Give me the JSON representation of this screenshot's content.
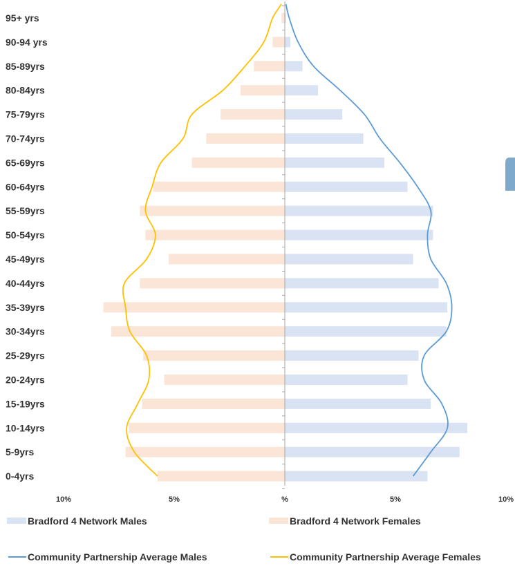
{
  "chart_data": {
    "type": "bar",
    "orientation": "horizontal-population-pyramid",
    "categories": [
      "95+  yrs",
      "90-94 yrs",
      "85-89yrs",
      "80-84yrs",
      "75-79yrs",
      "70-74yrs",
      "65-69yrs",
      "60-64yrs",
      "55-59yrs",
      "50-54yrs",
      "45-49yrs",
      "40-44yrs",
      "35-39yrs",
      "30-34yrs",
      "25-29yrs",
      "20-24yrs",
      "15-19yrs",
      "10-14yrs",
      "5-9yrs",
      "0-4yrs"
    ],
    "series": [
      {
        "name": "Bradford 4 Network Males",
        "kind": "bar",
        "side": "right",
        "color": "#dae3f3",
        "values": [
          0.05,
          0.25,
          0.8,
          1.5,
          2.6,
          3.55,
          4.5,
          5.55,
          6.7,
          6.7,
          5.8,
          6.95,
          7.35,
          7.3,
          6.05,
          5.55,
          6.6,
          8.25,
          7.9,
          6.45
        ]
      },
      {
        "name": "Bradford 4 Network Females",
        "kind": "bar",
        "side": "left",
        "color": "#fbe5d6",
        "values": [
          0.15,
          0.55,
          1.4,
          2.0,
          2.9,
          3.55,
          4.2,
          5.95,
          6.55,
          6.3,
          5.25,
          6.55,
          8.2,
          7.85,
          6.4,
          5.45,
          6.45,
          7.05,
          7.2,
          5.75
        ]
      },
      {
        "name": "Community Partnership Average Males",
        "kind": "line",
        "side": "right",
        "color": "#5b9bd5",
        "values": [
          0.2,
          0.6,
          1.3,
          2.5,
          3.6,
          4.3,
          5.2,
          6.0,
          6.6,
          6.45,
          6.6,
          7.3,
          7.55,
          7.3,
          6.3,
          6.3,
          7.1,
          7.35,
          6.6,
          5.8
        ]
      },
      {
        "name": "Community Partnership Average Females",
        "kind": "line",
        "side": "left",
        "color": "#ffc000",
        "values": [
          0.55,
          0.95,
          1.8,
          2.8,
          4.2,
          4.6,
          5.6,
          6.0,
          6.3,
          5.85,
          6.25,
          7.25,
          7.2,
          7.0,
          6.25,
          6.15,
          6.65,
          7.15,
          6.8,
          5.75
        ]
      }
    ],
    "x_ticks": [
      "10%",
      "5%",
      "%",
      "5%",
      "10%"
    ],
    "xlim": [
      -10,
      10
    ],
    "x_unit": "%",
    "grid": false,
    "legend": [
      {
        "label": "Bradford 4 Network Males",
        "kind": "bar",
        "color": "#dae3f3"
      },
      {
        "label": "Bradford 4 Network Females",
        "kind": "bar",
        "color": "#fbe5d6"
      },
      {
        "label": "Community Partnership Average Males",
        "kind": "line",
        "color": "#5b9bd5"
      },
      {
        "label": "Community Partnership Average Females",
        "kind": "line",
        "color": "#ffc000"
      }
    ],
    "legend_position": "bottom",
    "title": "",
    "xlabel": "",
    "ylabel": ""
  },
  "colors": {
    "axis": "#a6a6a6",
    "partial_shape": "#7fa9cc"
  }
}
